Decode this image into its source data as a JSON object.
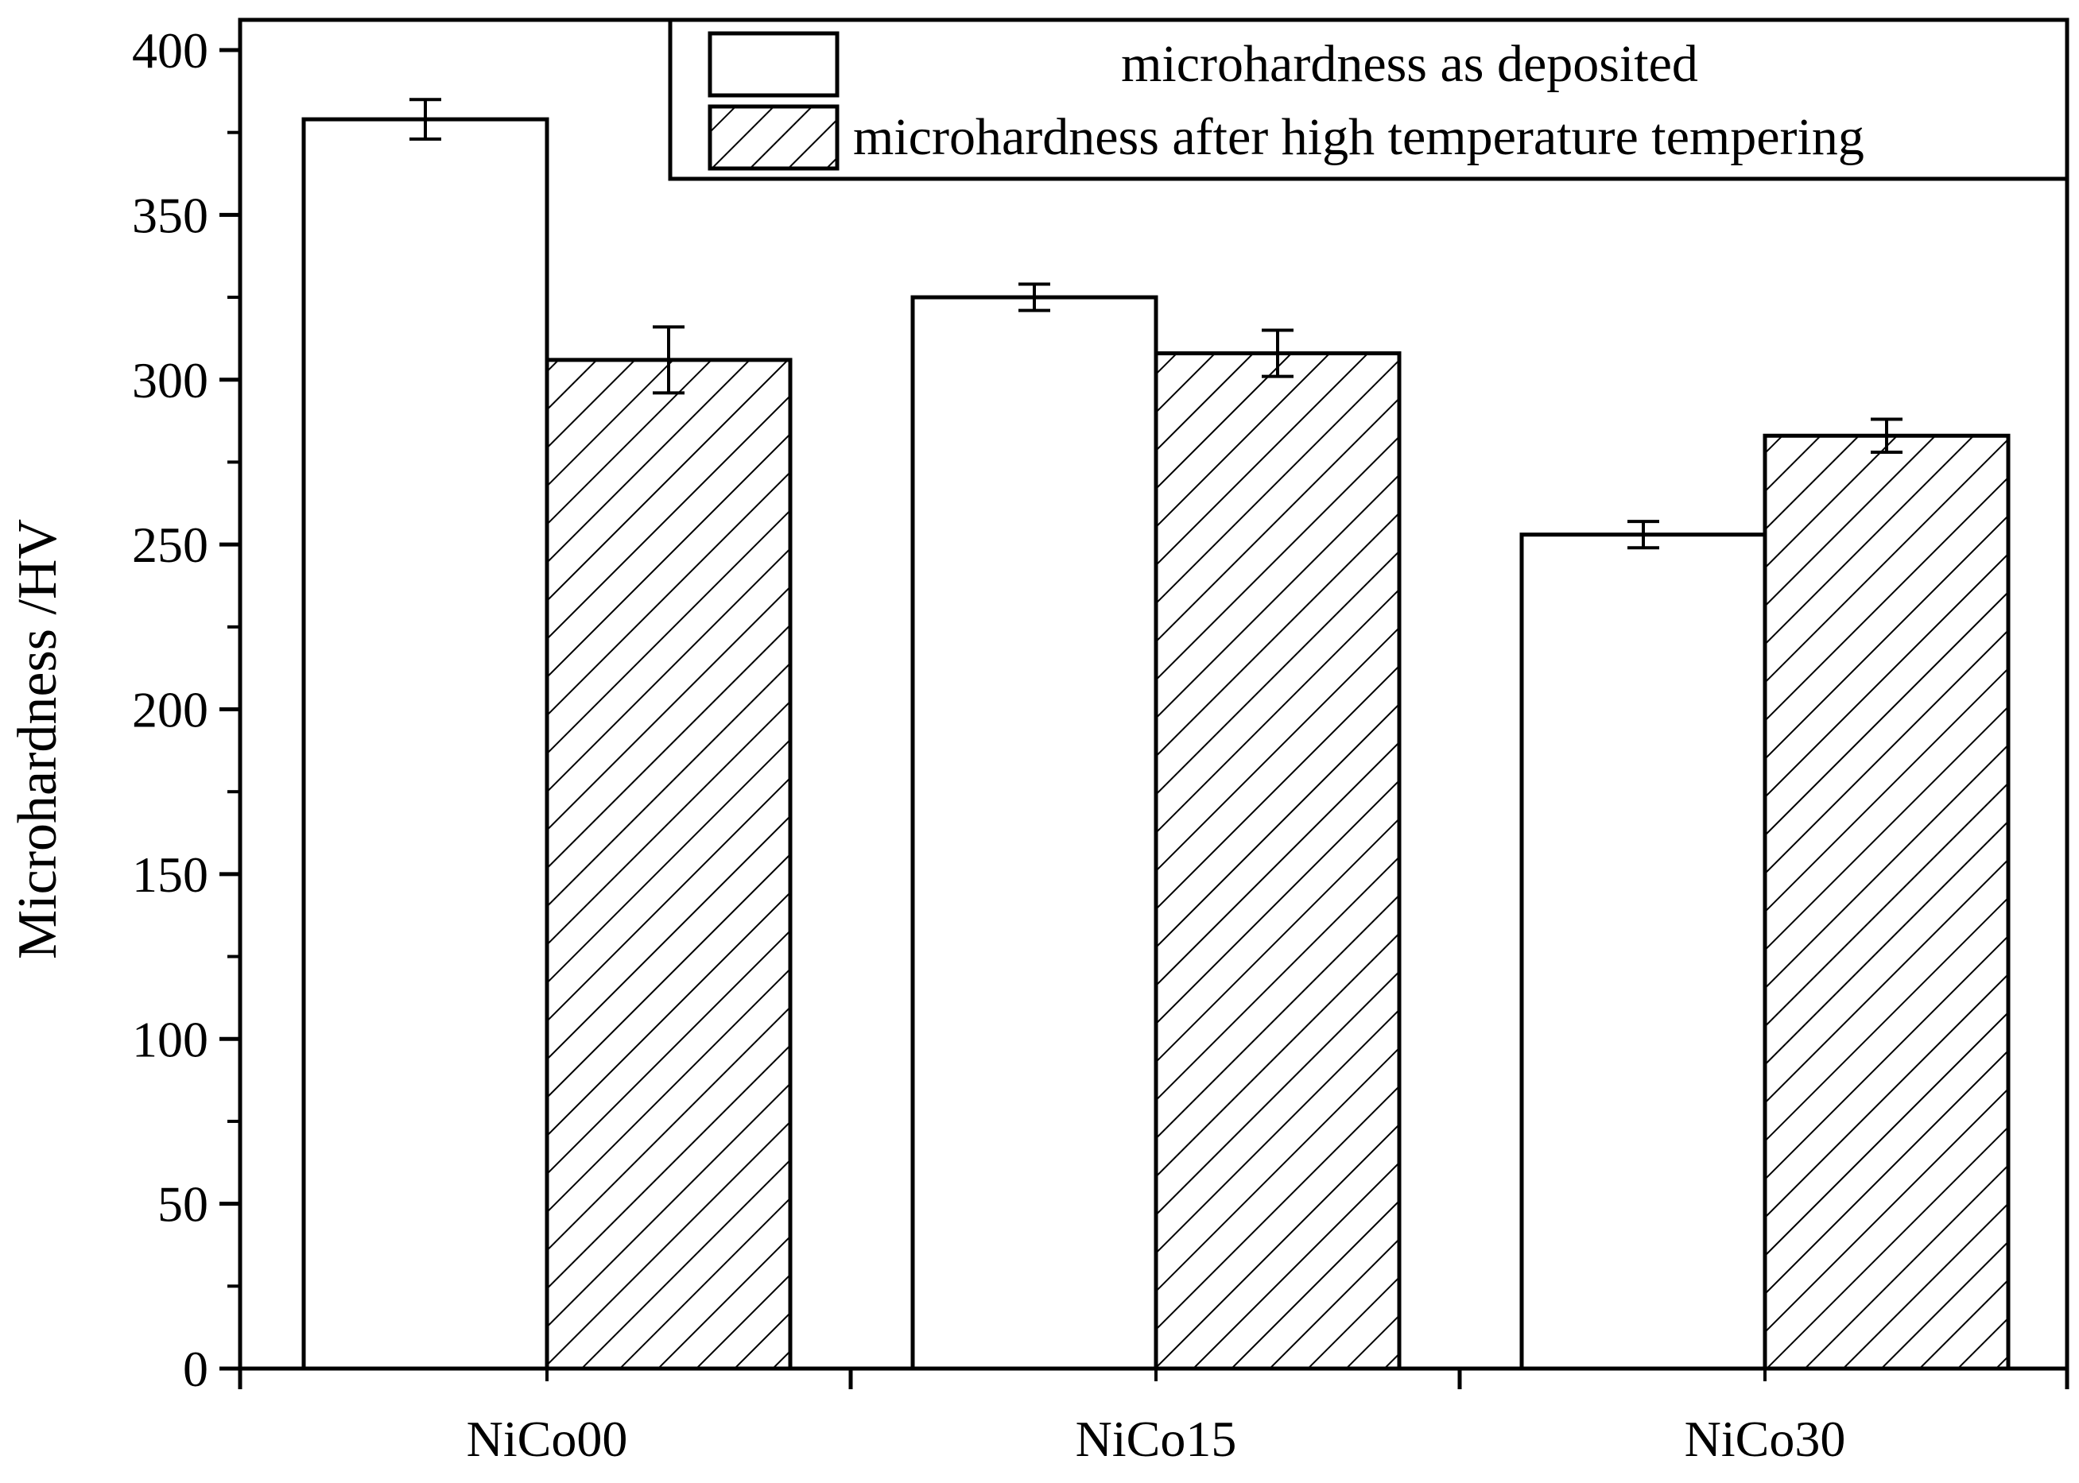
{
  "chart_data": {
    "type": "bar",
    "categories": [
      "NiCo00",
      "NiCo15",
      "NiCo30"
    ],
    "series": [
      {
        "name": "microhardness as deposited",
        "pattern": "none",
        "values": [
          379,
          325,
          253
        ],
        "errors": [
          6,
          4,
          4
        ]
      },
      {
        "name": "microhardness after high temperature tempering",
        "pattern": "hatch",
        "values": [
          306,
          308,
          283
        ],
        "errors": [
          10,
          7,
          5
        ]
      }
    ],
    "title": "",
    "xlabel": "",
    "ylabel": "Microhardness /HV",
    "ylim": [
      0,
      400
    ],
    "yticks": [
      "0",
      "50",
      "100",
      "150",
      "200",
      "250",
      "300",
      "350",
      "400"
    ],
    "grid": false,
    "legend_position": "top-right",
    "colors": {
      "bar_fill": "#ffffff",
      "stroke": "#000000"
    }
  }
}
